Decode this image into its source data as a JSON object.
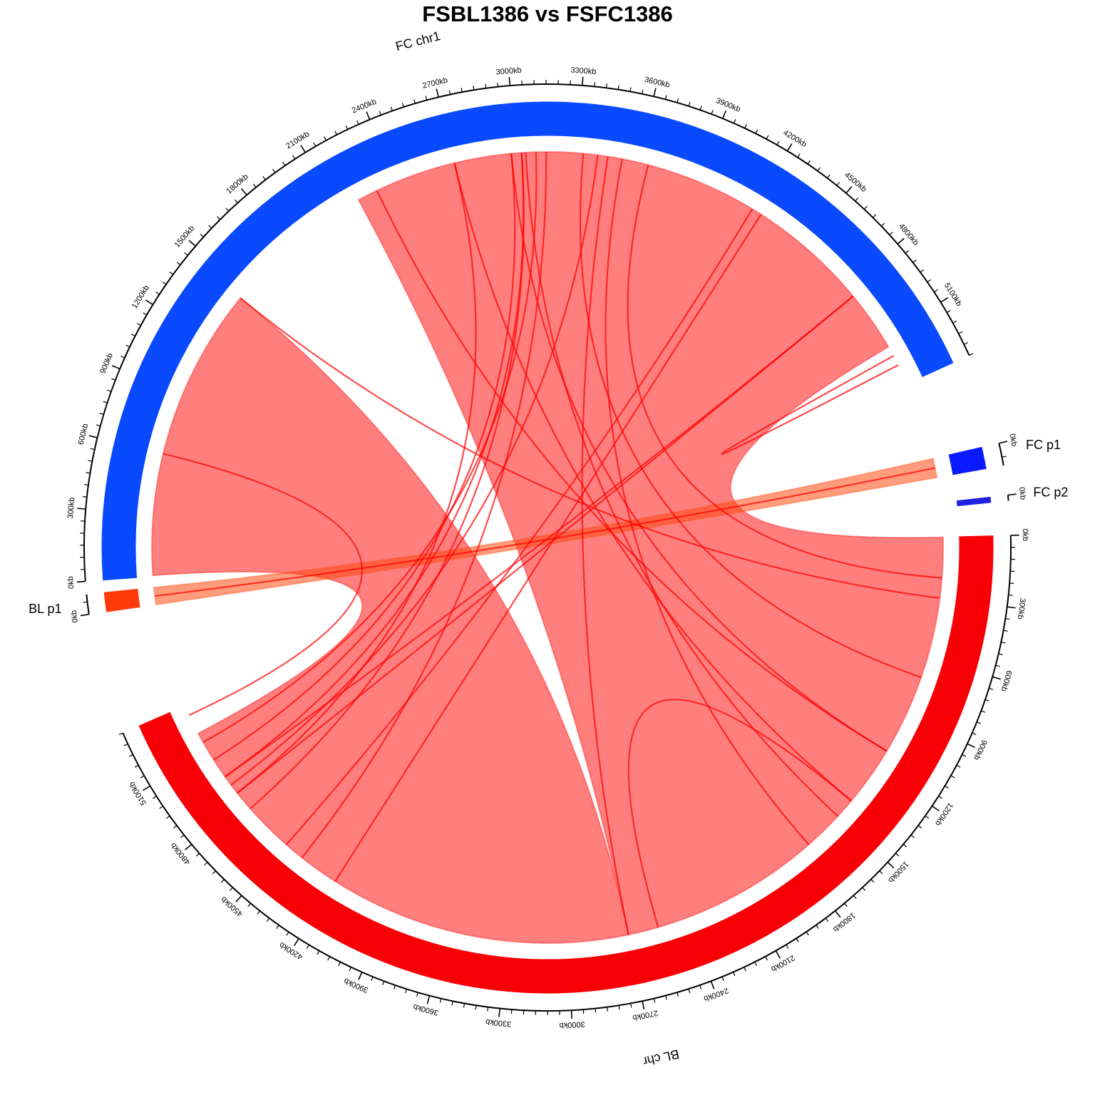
{
  "title": "FSBL1386 vs FSFC1386",
  "sectors": [
    {
      "id": "fc_chr1",
      "label": "FC chr1",
      "color": "#0a4aff",
      "length_kb": 5350,
      "tick_every_kb": 300
    },
    {
      "id": "fc_p1",
      "label": "FC p1",
      "color": "#0a1aff",
      "length_kb": 80,
      "tick_every_kb": 300
    },
    {
      "id": "fc_p2",
      "label": "FC p2",
      "color": "#2020e0",
      "length_kb": 3,
      "tick_every_kb": 300
    },
    {
      "id": "bl_chr",
      "label": "BL chr",
      "color": "#f90006",
      "length_kb": 5350,
      "tick_every_kb": 300
    },
    {
      "id": "bl_p1",
      "label": "BL p1",
      "color": "#ff3a0a",
      "length_kb": 80,
      "tick_every_kb": 300
    }
  ],
  "tick_unit": "kb",
  "link_color": "#ff0000",
  "ribbons": [
    {
      "from_sector": "fc_chr1",
      "from_kb": [
        2200,
        5150
      ],
      "to_sector": "bl_chr",
      "to_kb": [
        0,
        2700
      ],
      "fill": "#ff0000",
      "opacity": 0.5
    },
    {
      "from_sector": "fc_chr1",
      "from_kb": [
        5,
        1450
      ],
      "to_sector": "bl_chr",
      "to_kb": [
        2700,
        5200
      ],
      "fill": "#ff0000",
      "opacity": 0.5
    },
    {
      "from_sector": "fc_p1",
      "from_kb": [
        0,
        80
      ],
      "to_sector": "bl_p1",
      "to_kb": [
        0,
        80
      ],
      "fill": "#ff4a10",
      "opacity": 0.55
    }
  ],
  "links": [
    {
      "from_sector": "fc_chr1",
      "from_kb": 3330,
      "to_sector": "bl_chr",
      "to_kb": 700
    },
    {
      "from_sector": "fc_chr1",
      "from_kb": 3650,
      "to_sector": "bl_chr",
      "to_kb": 200
    },
    {
      "from_sector": "fc_chr1",
      "from_kb": 3450,
      "to_sector": "bl_chr",
      "to_kb": 2700
    },
    {
      "from_sector": "fc_chr1",
      "from_kb": 3520,
      "to_sector": "bl_chr",
      "to_kb": 1700
    },
    {
      "from_sector": "fc_chr1",
      "from_kb": 2300,
      "to_sector": "bl_chr",
      "to_kb": 1100
    },
    {
      "from_sector": "fc_chr1",
      "from_kb": 2700,
      "to_sector": "bl_chr",
      "to_kb": 1400
    },
    {
      "from_sector": "fc_chr1",
      "from_kb": 2980,
      "to_sector": "bl_chr",
      "to_kb": 1100
    },
    {
      "from_sector": "fc_chr1",
      "from_kb": 3050,
      "to_sector": "bl_chr",
      "to_kb": 1500
    },
    {
      "from_sector": "fc_chr1",
      "from_kb": 1450,
      "to_sector": "bl_chr",
      "to_kb": 300
    },
    {
      "from_sector": "fc_chr1",
      "from_kb": 4200,
      "to_sector": "bl_chr",
      "to_kb": 4500
    },
    {
      "from_sector": "fc_chr1",
      "from_kb": 4250,
      "to_sector": "bl_chr",
      "to_kb": 4200
    },
    {
      "from_sector": "fc_chr1",
      "from_kb": 4850,
      "to_sector": "bl_chr",
      "to_kb": 4950
    },
    {
      "from_sector": "fc_chr1",
      "from_kb": 4850,
      "to_sector": "bl_chr",
      "to_kb": 4850
    },
    {
      "from_sector": "fc_chr1",
      "from_kb": 2980,
      "to_sector": "bl_chr",
      "to_kb": 5050
    },
    {
      "from_sector": "fc_chr1",
      "from_kb": 3030,
      "to_sector": "bl_chr",
      "to_kb": 4950
    },
    {
      "from_sector": "fc_chr1",
      "from_kb": 3100,
      "to_sector": "bl_chr",
      "to_kb": 5150
    },
    {
      "from_sector": "fc_chr1",
      "from_kb": 3400,
      "to_sector": "bl_chr",
      "to_kb": 4900
    },
    {
      "from_sector": "fc_chr1",
      "from_kb": 2700,
      "to_sector": "bl_chr",
      "to_kb": 4850
    },
    {
      "from_sector": "fc_chr1",
      "from_kb": 3150,
      "to_sector": "bl_chr",
      "to_kb": 4400
    },
    {
      "from_sector": "fc_chr1",
      "from_kb": 3030,
      "to_sector": "bl_chr",
      "to_kb": 4750
    },
    {
      "from_sector": "fc_chr1",
      "from_kb": 5200,
      "to_sector": "fc_chr1",
      "to_kb": 5250
    },
    {
      "from_sector": "fc_chr1",
      "from_kb": 600,
      "to_sector": "bl_chr",
      "to_kb": 5300
    },
    {
      "from_sector": "bl_chr",
      "from_kb": 1400,
      "to_sector": "bl_chr",
      "to_kb": 2550
    },
    {
      "from_sector": "fc_p1",
      "from_kb": 40,
      "to_sector": "bl_p1",
      "to_kb": 40
    }
  ]
}
